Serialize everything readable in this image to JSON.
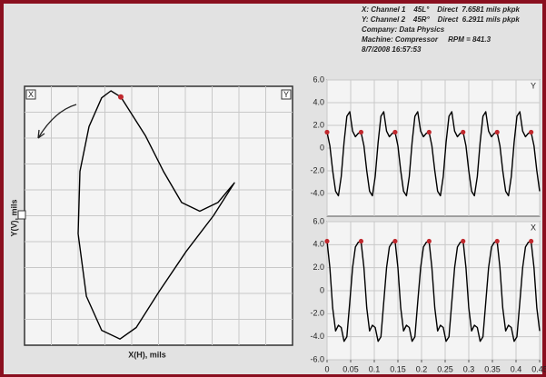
{
  "header": {
    "lines": [
      "X: Channel 1    45L°    Direct  7.6581 mils pkpk",
      "Y: Channel 2    45R°    Direct  6.2911 mils pkpk",
      "Company: Data Physics",
      "Machine: Compressor     RPM = 841.3",
      "8/7/2008 16:57:53"
    ]
  },
  "chart_data": [
    {
      "type": "orbit",
      "x_label": "X(H), mils",
      "y_label": "Y(V), mils",
      "corner_labels": [
        "X",
        "Y"
      ],
      "x": [
        -2.13,
        -0.94,
        -0.06,
        0.82,
        1.7,
        2.58,
        3.38,
        2.36,
        1.04,
        -0.28,
        -1.38,
        -2.17,
        -3.06,
        -3.8,
        -4.2,
        -4.11,
        -3.67,
        -3.06,
        -2.61,
        -2.13
      ],
      "values": [
        4.22,
        2.85,
        1.58,
        0.47,
        0.16,
        0.47,
        1.17,
        0.0,
        -1.27,
        -2.7,
        -3.97,
        -4.38,
        -4.07,
        -2.86,
        -0.64,
        1.58,
        3.17,
        4.19,
        4.44,
        4.22
      ],
      "xlim": [
        -6.8,
        6.2
      ],
      "ylim": [
        -4.6,
        4.6
      ],
      "color": "#000000",
      "marker": {
        "x": -2.13,
        "y": 4.22,
        "color": "#c0282d"
      }
    },
    {
      "type": "line",
      "channel_label": "Y",
      "x": [
        0,
        0.006,
        0.012,
        0.018,
        0.024,
        0.03,
        0.036,
        0.042,
        0.048,
        0.054,
        0.06,
        0.066,
        0.072,
        0.078,
        0.084,
        0.09,
        0.096,
        0.102,
        0.108,
        0.114,
        0.12,
        0.126,
        0.132,
        0.138,
        0.144,
        0.15,
        0.156,
        0.162,
        0.168,
        0.174,
        0.18,
        0.186,
        0.192,
        0.198,
        0.204,
        0.21,
        0.216,
        0.222,
        0.228,
        0.234,
        0.24,
        0.246,
        0.252,
        0.258,
        0.264,
        0.27,
        0.276,
        0.282,
        0.288,
        0.294,
        0.3,
        0.306,
        0.312,
        0.318,
        0.324,
        0.33,
        0.336,
        0.342,
        0.348,
        0.354,
        0.36,
        0.366,
        0.372,
        0.378,
        0.384,
        0.39,
        0.396,
        0.402,
        0.408,
        0.414,
        0.42,
        0.426,
        0.432,
        0.438,
        0.444,
        0.45
      ],
      "values": [
        1.4,
        0.2,
        -2.0,
        -3.8,
        -4.2,
        -2.5,
        0.5,
        2.8,
        3.2,
        1.5,
        1.0,
        1.3,
        1.4,
        0.2,
        -2.0,
        -3.8,
        -4.2,
        -2.5,
        0.5,
        2.8,
        3.2,
        1.5,
        1.0,
        1.3,
        1.4,
        0.2,
        -2.0,
        -3.8,
        -4.2,
        -2.5,
        0.5,
        2.8,
        3.2,
        1.5,
        1.0,
        1.3,
        1.4,
        0.2,
        -2.0,
        -3.8,
        -4.2,
        -2.5,
        0.5,
        2.8,
        3.2,
        1.5,
        1.0,
        1.3,
        1.4,
        0.2,
        -2.0,
        -3.8,
        -4.2,
        -2.5,
        0.5,
        2.8,
        3.2,
        1.5,
        1.0,
        1.3,
        1.4,
        0.2,
        -2.0,
        -3.8,
        -4.2,
        -2.5,
        0.5,
        2.8,
        3.2,
        1.5,
        1.0,
        1.3,
        1.4,
        0.2,
        -2.0,
        -3.8
      ],
      "keyphasor": {
        "x": [
          0,
          0.072,
          0.144,
          0.216,
          0.288,
          0.36,
          0.432
        ],
        "values": [
          1.4,
          1.4,
          1.4,
          1.4,
          1.4,
          1.4,
          1.4
        ],
        "color": "#c0282d"
      },
      "xlim": [
        0,
        0.45
      ],
      "ylim": [
        -6,
        6
      ],
      "color": "#000000",
      "grid": true,
      "yticks": [
        {
          "value": 6,
          "label": "6.0"
        },
        {
          "value": 4,
          "label": "4.0"
        },
        {
          "value": 2,
          "label": "2.0"
        },
        0,
        {
          "value": -2,
          "label": "-2.0"
        },
        {
          "value": -4,
          "label": "-4.0"
        }
      ]
    },
    {
      "type": "line",
      "channel_label": "X",
      "x": [
        0,
        0.006,
        0.012,
        0.018,
        0.024,
        0.03,
        0.036,
        0.042,
        0.048,
        0.054,
        0.06,
        0.066,
        0.072,
        0.078,
        0.084,
        0.09,
        0.096,
        0.102,
        0.108,
        0.114,
        0.12,
        0.126,
        0.132,
        0.138,
        0.144,
        0.15,
        0.156,
        0.162,
        0.168,
        0.174,
        0.18,
        0.186,
        0.192,
        0.198,
        0.204,
        0.21,
        0.216,
        0.222,
        0.228,
        0.234,
        0.24,
        0.246,
        0.252,
        0.258,
        0.264,
        0.27,
        0.276,
        0.282,
        0.288,
        0.294,
        0.3,
        0.306,
        0.312,
        0.318,
        0.324,
        0.33,
        0.336,
        0.342,
        0.348,
        0.354,
        0.36,
        0.366,
        0.372,
        0.378,
        0.384,
        0.39,
        0.396,
        0.402,
        0.408,
        0.414,
        0.42,
        0.426,
        0.432,
        0.438,
        0.444,
        0.45
      ],
      "values": [
        4.3,
        2.0,
        -1.5,
        -3.5,
        -3.0,
        -3.2,
        -4.4,
        -4.0,
        -1.0,
        2.0,
        3.8,
        4.2,
        4.3,
        2.0,
        -1.5,
        -3.5,
        -3.0,
        -3.2,
        -4.4,
        -4.0,
        -1.0,
        2.0,
        3.8,
        4.2,
        4.3,
        2.0,
        -1.5,
        -3.5,
        -3.0,
        -3.2,
        -4.4,
        -4.0,
        -1.0,
        2.0,
        3.8,
        4.2,
        4.3,
        2.0,
        -1.5,
        -3.5,
        -3.0,
        -3.2,
        -4.4,
        -4.0,
        -1.0,
        2.0,
        3.8,
        4.2,
        4.3,
        2.0,
        -1.5,
        -3.5,
        -3.0,
        -3.2,
        -4.4,
        -4.0,
        -1.0,
        2.0,
        3.8,
        4.2,
        4.3,
        2.0,
        -1.5,
        -3.5,
        -3.0,
        -3.2,
        -4.4,
        -4.0,
        -1.0,
        2.0,
        3.8,
        4.2,
        4.3,
        2.0,
        -1.5,
        -3.5
      ],
      "keyphasor": {
        "x": [
          0,
          0.072,
          0.144,
          0.216,
          0.288,
          0.36,
          0.432
        ],
        "values": [
          4.3,
          4.3,
          4.3,
          4.3,
          4.3,
          4.3,
          4.3
        ],
        "color": "#c0282d"
      },
      "xlim": [
        0,
        0.45
      ],
      "ylim": [
        -6,
        6
      ],
      "color": "#000000",
      "grid": true,
      "yticks": [
        {
          "value": 6,
          "label": "6.0"
        },
        {
          "value": 4,
          "label": "4.0"
        },
        {
          "value": 2,
          "label": "2.0"
        },
        0,
        {
          "value": -2,
          "label": "-2.0"
        },
        {
          "value": -4,
          "label": "-4.0"
        },
        {
          "value": -6,
          "label": "-6.0"
        }
      ],
      "xticks": [
        0,
        0.05,
        0.1,
        0.15,
        0.2,
        0.25,
        0.3,
        0.35,
        0.4,
        0.45
      ]
    }
  ]
}
